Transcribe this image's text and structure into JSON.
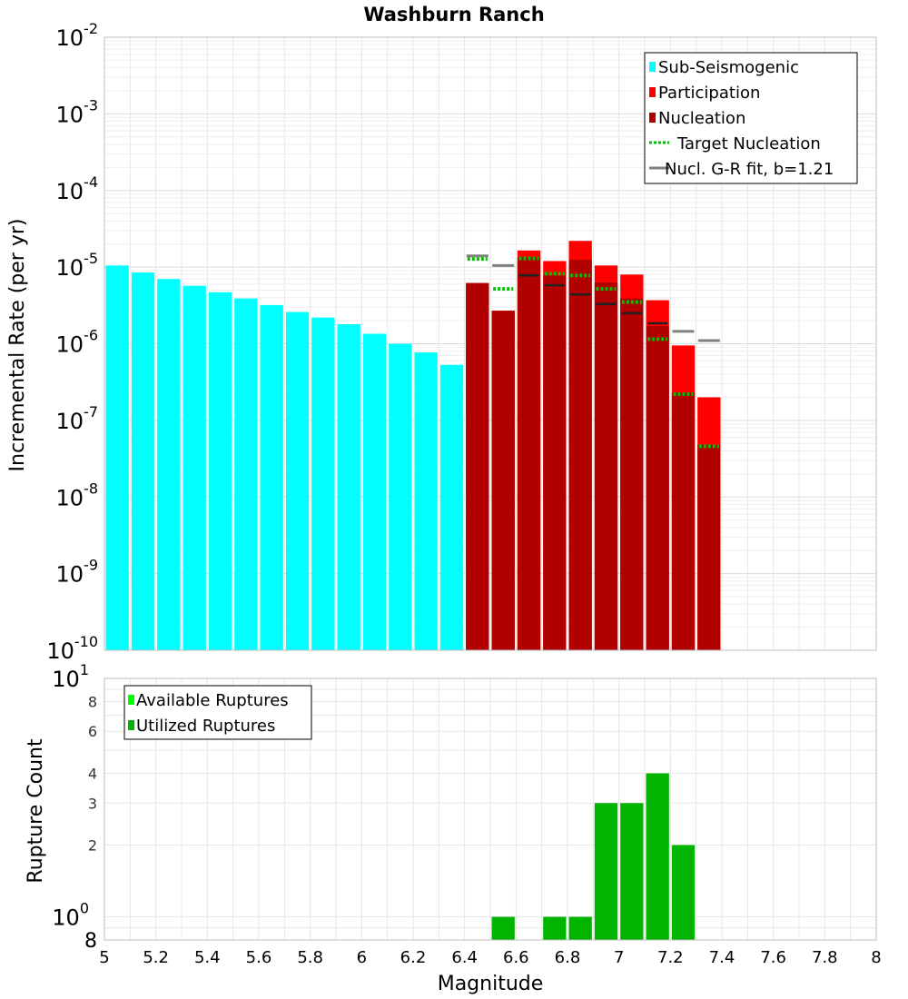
{
  "chart_data": [
    {
      "type": "bar",
      "title": "Washburn Ranch",
      "ylabel": "Incremental Rate (per yr)",
      "xlabel": "",
      "yscale": "log",
      "ylim": [
        1e-10,
        0.01
      ],
      "xlim": [
        5,
        8
      ],
      "y_ticks": [
        {
          "base": "10",
          "exp": "-2"
        },
        {
          "base": "10",
          "exp": "-3"
        },
        {
          "base": "10",
          "exp": "-4"
        },
        {
          "base": "10",
          "exp": "-5"
        },
        {
          "base": "10",
          "exp": "-6"
        },
        {
          "base": "10",
          "exp": "-7"
        },
        {
          "base": "10",
          "exp": "-8"
        },
        {
          "base": "10",
          "exp": "-9"
        },
        {
          "base": "10",
          "exp": "-10"
        }
      ],
      "legend_position": "top-right",
      "legend": [
        "Sub-Seismogenic",
        "Participation",
        "Nucleation",
        "Target Nucleation",
        "Nucl. G-R fit, b=1.21"
      ],
      "colors": {
        "sub_seismogenic": "#00ffff",
        "participation": "#ff0000",
        "nucleation": "#b00000",
        "target_nucleation": "#00c000",
        "gr_fit": "#808080",
        "nucleation_tick": "#202020"
      },
      "sub_seismogenic": {
        "x": [
          5.05,
          5.15,
          5.25,
          5.35,
          5.45,
          5.55,
          5.65,
          5.75,
          5.85,
          5.95,
          6.05,
          6.15,
          6.25,
          6.35
        ],
        "values": [
          1.05e-05,
          8.5e-06,
          7e-06,
          5.7e-06,
          4.7e-06,
          3.9e-06,
          3.2e-06,
          2.6e-06,
          2.2e-06,
          1.8e-06,
          1.35e-06,
          1e-06,
          7.7e-07,
          5.3e-07
        ]
      },
      "participation": {
        "x": [
          6.45,
          6.55,
          6.65,
          6.75,
          6.85,
          6.95,
          7.05,
          7.15,
          7.25,
          7.35
        ],
        "values": [
          6.2e-06,
          2.7e-06,
          1.65e-05,
          1.2e-05,
          2.2e-05,
          1.05e-05,
          8e-06,
          3.7e-06,
          9.5e-07,
          2e-07
        ]
      },
      "nucleation": {
        "x": [
          6.45,
          6.55,
          6.65,
          6.75,
          6.85,
          6.95,
          7.05,
          7.15,
          7.25,
          7.35
        ],
        "values": [
          6.2e-06,
          2.7e-06,
          1.35e-05,
          7.8e-06,
          1.25e-05,
          6.3e-06,
          3.9e-06,
          1.7e-06,
          2.3e-07,
          4.8e-08
        ]
      },
      "nucleation_ticks": {
        "x": [
          6.65,
          6.75,
          6.85,
          6.95,
          7.05,
          7.15
        ],
        "values": [
          7.8e-06,
          5.8e-06,
          4.4e-06,
          3.3e-06,
          2.5e-06,
          1.85e-06
        ]
      },
      "target_nucleation": {
        "x": [
          6.45,
          6.55,
          6.65,
          6.75,
          6.85,
          6.95,
          7.05,
          7.15,
          7.25,
          7.35
        ],
        "values": [
          1.28e-05,
          5.2e-06,
          1.3e-05,
          8.2e-06,
          7.8e-06,
          5.2e-06,
          3.5e-06,
          1.15e-06,
          2.2e-07,
          4.6e-08
        ]
      },
      "gr_fit": {
        "x": [
          6.45,
          6.55
        ],
        "values": [
          1.4e-05,
          1.05e-05
        ],
        "extra_x": [
          7.25,
          7.35
        ],
        "extra_values": [
          1.45e-06,
          1.1e-06
        ]
      }
    },
    {
      "type": "bar",
      "title": "",
      "xlabel": "Magnitude",
      "ylabel": "Rupture Count",
      "yscale": "log",
      "ylim": [
        0.8,
        10
      ],
      "xlim": [
        5,
        8
      ],
      "x_ticks": [
        "5",
        "5.2",
        "5.4",
        "5.6",
        "5.8",
        "6",
        "6.2",
        "6.4",
        "6.6",
        "6.8",
        "7",
        "7.2",
        "7.4",
        "7.6",
        "7.8",
        "8"
      ],
      "y_major_ticks": [
        {
          "base": "10",
          "exp": "1"
        },
        {
          "base": "10",
          "exp": "0"
        }
      ],
      "y_minor_ticks": [
        "8",
        "6",
        "4",
        "3",
        "2",
        "8"
      ],
      "legend_position": "top-left",
      "legend": [
        "Available Ruptures",
        "Utilized Ruptures"
      ],
      "colors": {
        "available": "#00ff00",
        "utilized": "#00b400"
      },
      "x": [
        6.55,
        6.75,
        6.85,
        6.95,
        7.05,
        7.15,
        7.25
      ],
      "utilized": [
        1,
        1,
        1,
        3,
        3,
        4,
        2
      ],
      "available": [
        1,
        1,
        1,
        3,
        3,
        4,
        2
      ]
    }
  ]
}
